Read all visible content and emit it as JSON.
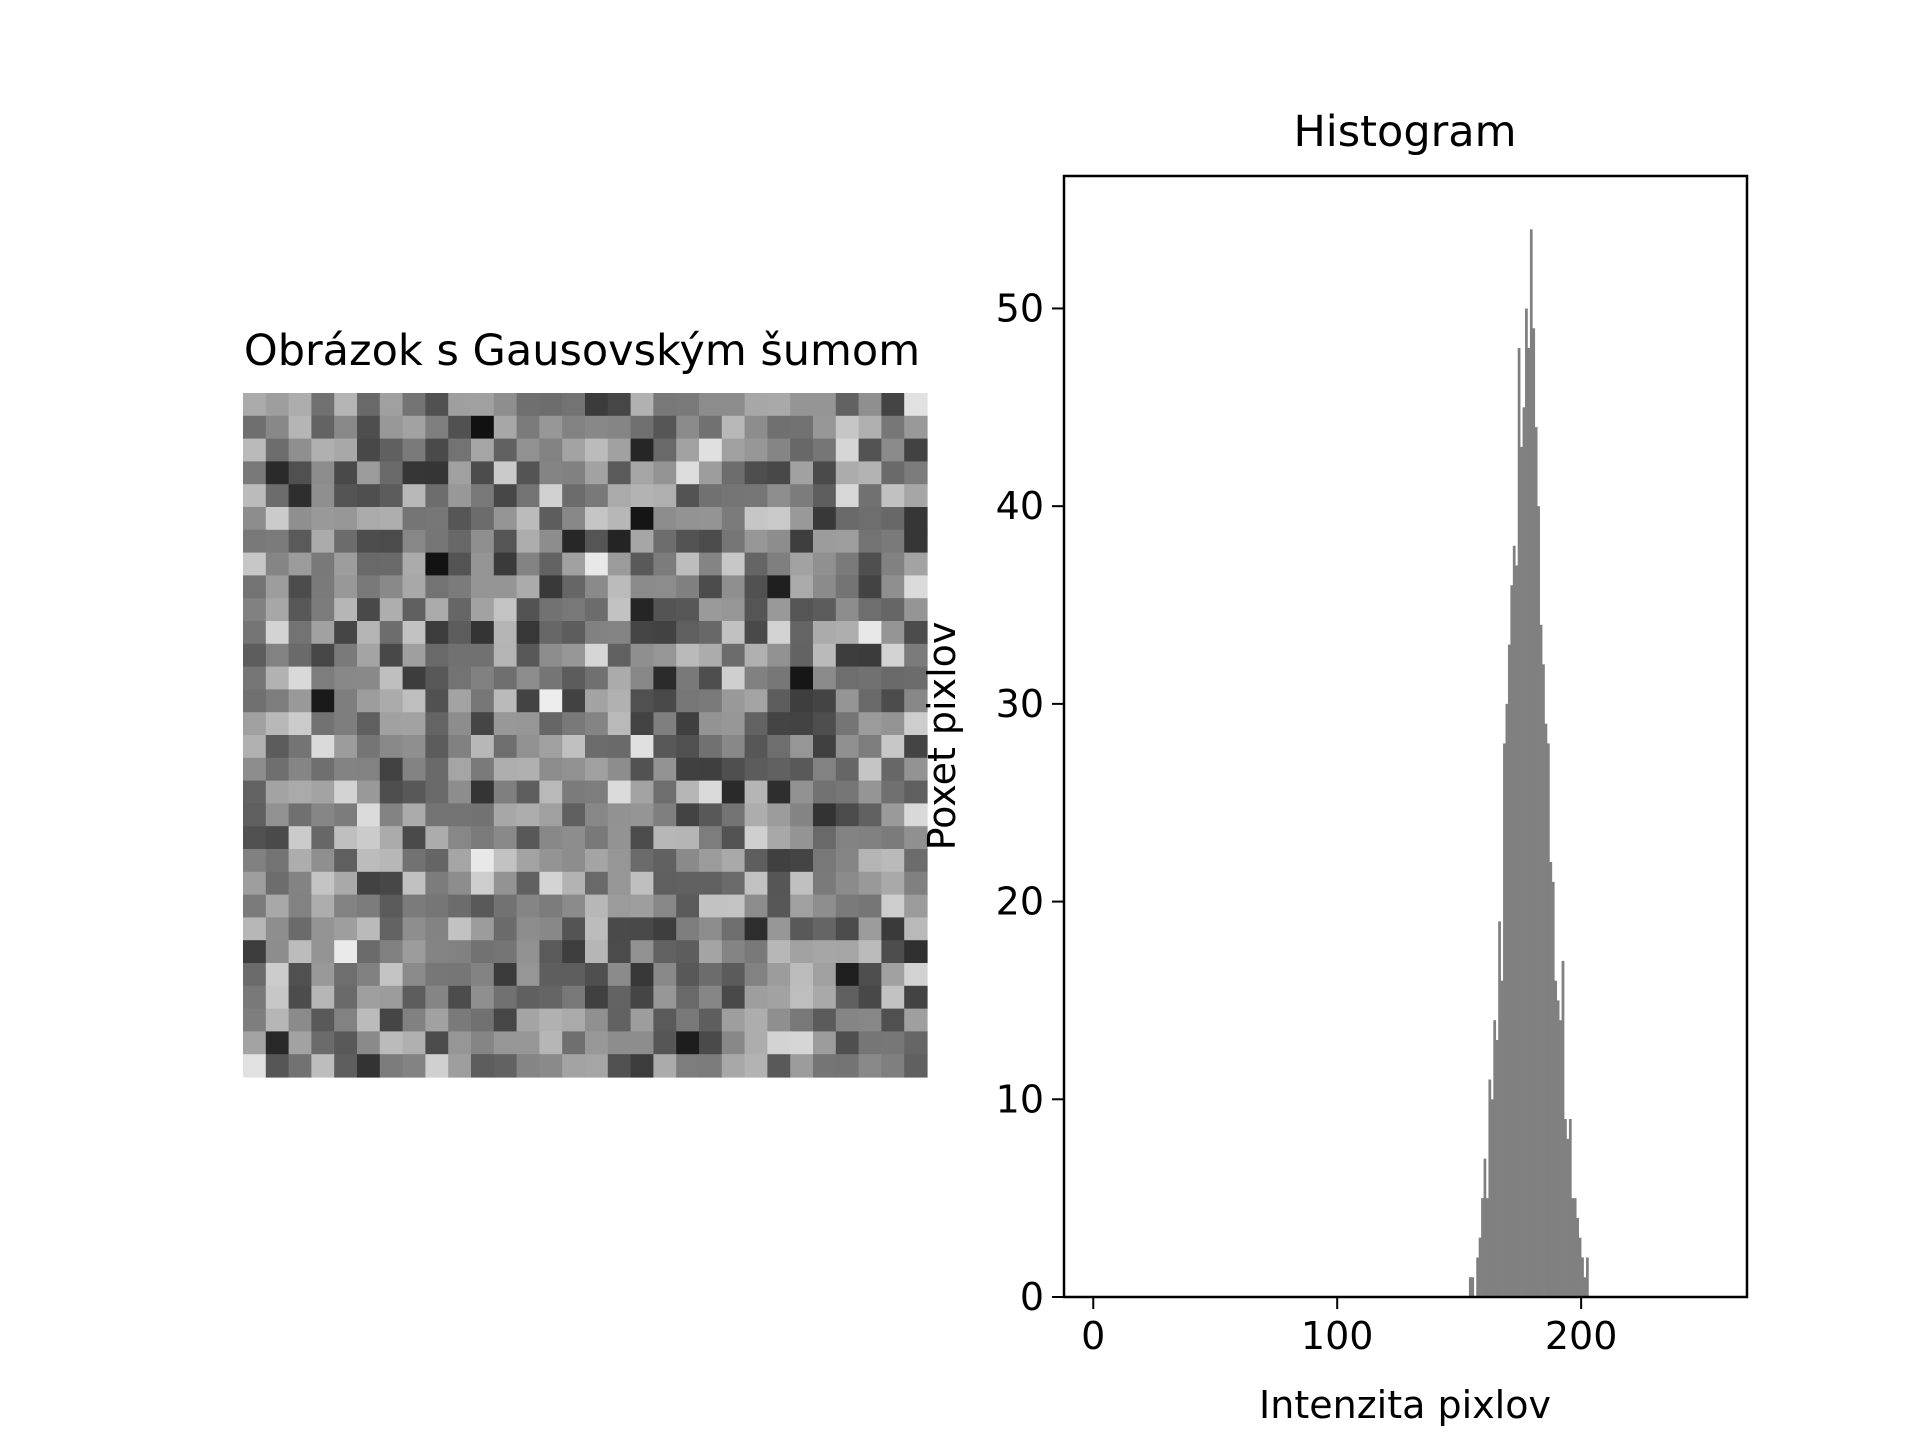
{
  "image_panel": {
    "title": "Obrázok s Gausovským šumom",
    "grid_size": 30,
    "colormap": "gray"
  },
  "chart_data": {
    "type": "bar",
    "title": "Histogram",
    "xlabel": "Intenzita pixlov",
    "ylabel": "Poxet pixlov",
    "xlim": [
      -12,
      268
    ],
    "ylim": [
      0,
      56.7
    ],
    "xticks": [
      0,
      100,
      200
    ],
    "yticks": [
      0,
      10,
      20,
      30,
      40,
      50
    ],
    "bar_color": "#808080",
    "bin_width": 1,
    "x": [
      154,
      155,
      156,
      157,
      158,
      159,
      160,
      161,
      162,
      163,
      164,
      165,
      166,
      167,
      168,
      169,
      170,
      171,
      172,
      173,
      174,
      175,
      176,
      177,
      178,
      179,
      180,
      181,
      182,
      183,
      184,
      185,
      186,
      187,
      188,
      189,
      190,
      191,
      192,
      193,
      194,
      195,
      196,
      197,
      198,
      199,
      200,
      201,
      202
    ],
    "values": [
      1,
      1,
      0,
      2,
      3,
      5,
      7,
      5,
      11,
      10,
      14,
      13,
      19,
      16,
      28,
      30,
      33,
      36,
      38,
      37,
      48,
      43,
      45,
      50,
      48,
      54,
      49,
      44,
      40,
      34,
      32,
      29,
      28,
      22,
      21,
      16,
      15,
      14,
      17,
      9,
      8,
      9,
      5,
      5,
      4,
      3,
      2,
      1,
      2
    ]
  }
}
